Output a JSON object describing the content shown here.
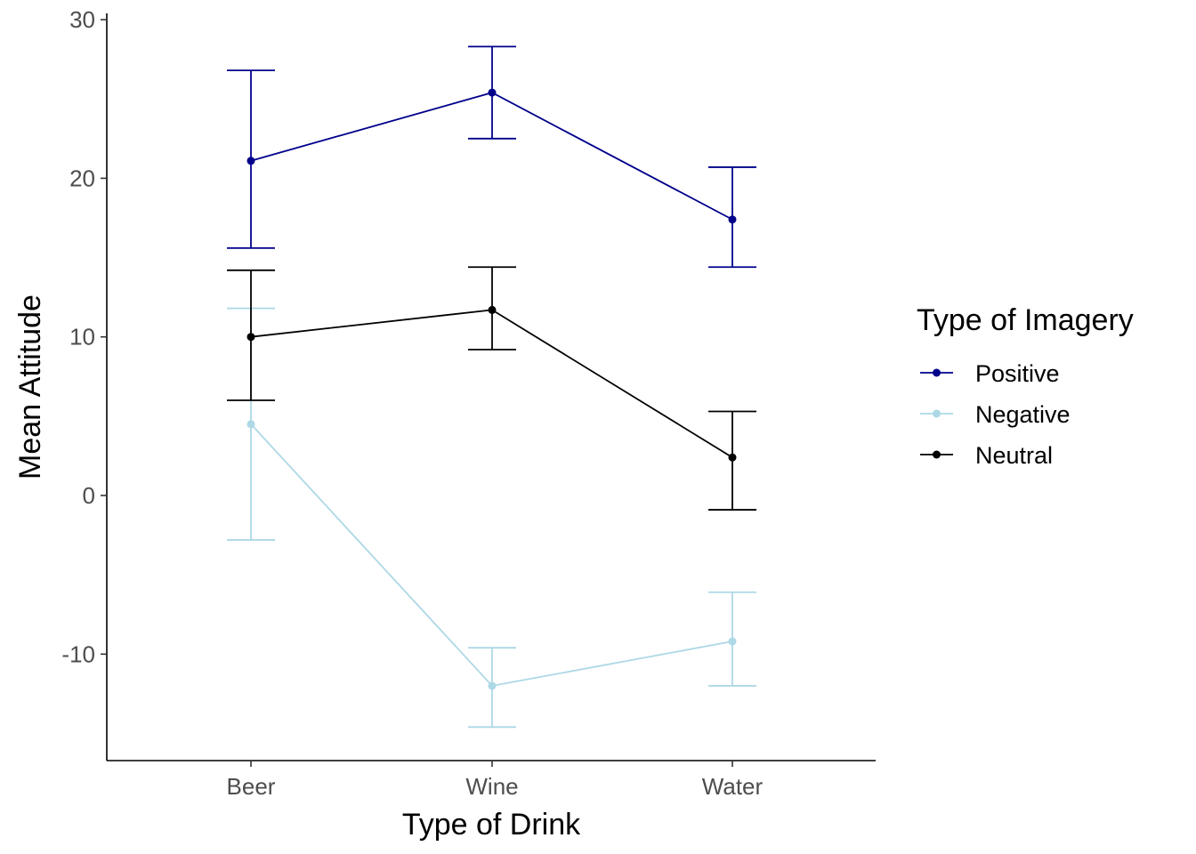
{
  "chart_data": {
    "type": "line",
    "xlabel": "Type of Drink",
    "ylabel": "Mean Attitude",
    "categories": [
      "Beer",
      "Wine",
      "Water"
    ],
    "ylim": [
      -16.7,
      30.4
    ],
    "yticks": [
      -10,
      0,
      10,
      20,
      30
    ],
    "grid": false,
    "legend": {
      "title": "Type of Imagery",
      "position": "right"
    },
    "series": [
      {
        "name": "Positive",
        "color": "#00008B",
        "values": [
          21.1,
          25.4,
          17.4
        ],
        "lower": [
          15.6,
          22.5,
          14.4
        ],
        "upper": [
          26.8,
          28.3,
          20.7
        ]
      },
      {
        "name": "Negative",
        "color": "#ADD8E6",
        "values": [
          4.5,
          -12.0,
          -9.2
        ],
        "lower": [
          -2.8,
          -14.6,
          -12.0
        ],
        "upper": [
          11.8,
          -9.6,
          -6.1
        ]
      },
      {
        "name": "Neutral",
        "color": "#000000",
        "values": [
          10.0,
          11.7,
          2.4
        ],
        "lower": [
          6.0,
          9.2,
          -0.9
        ],
        "upper": [
          14.2,
          14.4,
          5.3
        ]
      }
    ]
  }
}
